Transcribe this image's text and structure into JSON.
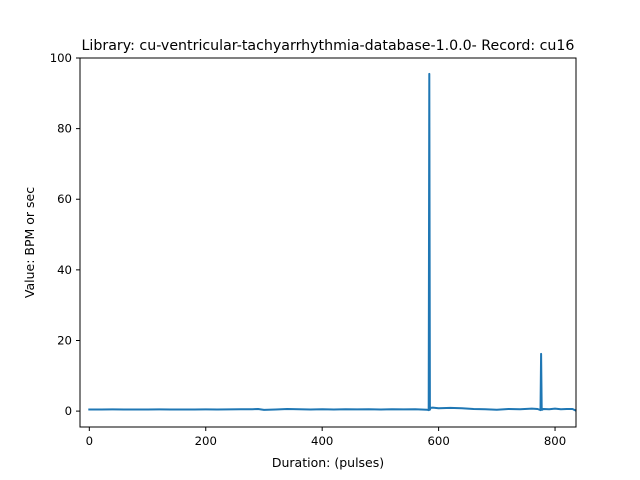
{
  "chart_data": {
    "type": "line",
    "title": "Library: cu-ventricular-tachyarrhythmia-database-1.0.0- Record: cu16",
    "xlabel": "Duration: (pulses)",
    "ylabel": "Value: BPM or sec",
    "xlim": [
      -16,
      836
    ],
    "ylim": [
      -4.5,
      100
    ],
    "xticks": [
      0,
      200,
      400,
      600,
      800
    ],
    "yticks": [
      0,
      20,
      40,
      60,
      80,
      100
    ],
    "grid": false,
    "legend": null,
    "series": [
      {
        "color": "#1f77b4",
        "x": [
          0,
          20,
          40,
          60,
          80,
          100,
          120,
          140,
          160,
          180,
          200,
          220,
          240,
          260,
          280,
          290,
          300,
          320,
          340,
          360,
          380,
          400,
          420,
          440,
          460,
          480,
          500,
          520,
          540,
          560,
          580,
          583,
          584,
          585,
          586,
          590,
          600,
          620,
          640,
          660,
          680,
          700,
          720,
          740,
          760,
          770,
          775,
          776,
          777,
          778,
          780,
          790,
          800,
          810,
          820,
          830,
          835
        ],
        "y": [
          0.45,
          0.45,
          0.48,
          0.46,
          0.47,
          0.45,
          0.48,
          0.46,
          0.47,
          0.46,
          0.48,
          0.47,
          0.48,
          0.5,
          0.55,
          0.6,
          0.35,
          0.45,
          0.6,
          0.5,
          0.45,
          0.5,
          0.45,
          0.5,
          0.48,
          0.5,
          0.47,
          0.5,
          0.48,
          0.5,
          0.4,
          0.3,
          95.5,
          0.4,
          0.9,
          1.0,
          0.8,
          0.9,
          0.8,
          0.6,
          0.5,
          0.4,
          0.6,
          0.5,
          0.7,
          0.6,
          0.3,
          16.2,
          0.4,
          0.4,
          0.6,
          0.5,
          0.7,
          0.5,
          0.6,
          0.6,
          0.2
        ]
      }
    ]
  }
}
